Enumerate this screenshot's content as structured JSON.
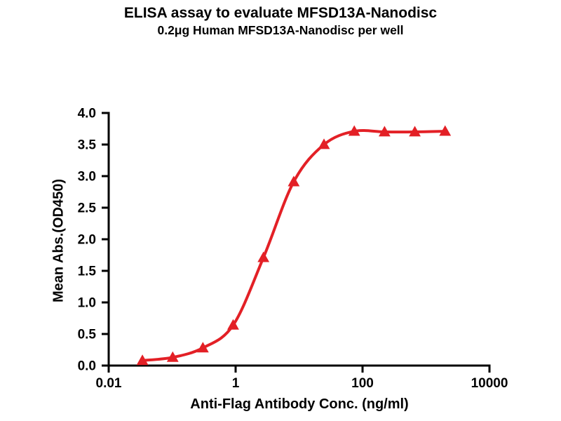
{
  "chart_data": {
    "type": "line",
    "title": "ELISA assay to evaluate MFSD13A-Nanodisc",
    "subtitle": "0.2μg Human MFSD13A-Nanodisc per well",
    "xlabel": "Anti-Flag Antibody Conc. (ng/ml)",
    "ylabel": "Mean Abs.(OD450)",
    "xscale": "log",
    "xlim": [
      0.01,
      10000
    ],
    "ylim": [
      0.0,
      4.0
    ],
    "xticks": [
      0.01,
      1,
      100,
      10000
    ],
    "xtick_labels": [
      "0.01",
      "1",
      "100",
      "10000"
    ],
    "yticks": [
      0.0,
      0.5,
      1.0,
      1.5,
      2.0,
      2.5,
      3.0,
      3.5,
      4.0
    ],
    "grid": false,
    "legend": "none",
    "marker": "triangle-up",
    "series": [
      {
        "x": [
          0.034,
          0.102,
          0.305,
          0.914,
          2.743,
          8.23,
          24.69,
          74.07,
          222.2,
          666.7,
          2000
        ],
        "y": [
          0.08,
          0.13,
          0.28,
          0.64,
          1.71,
          2.91,
          3.5,
          3.71,
          3.7,
          3.7,
          3.71
        ]
      }
    ],
    "colors": {
      "curve": "#e32026",
      "axis": "#000000",
      "background": "#ffffff"
    }
  }
}
